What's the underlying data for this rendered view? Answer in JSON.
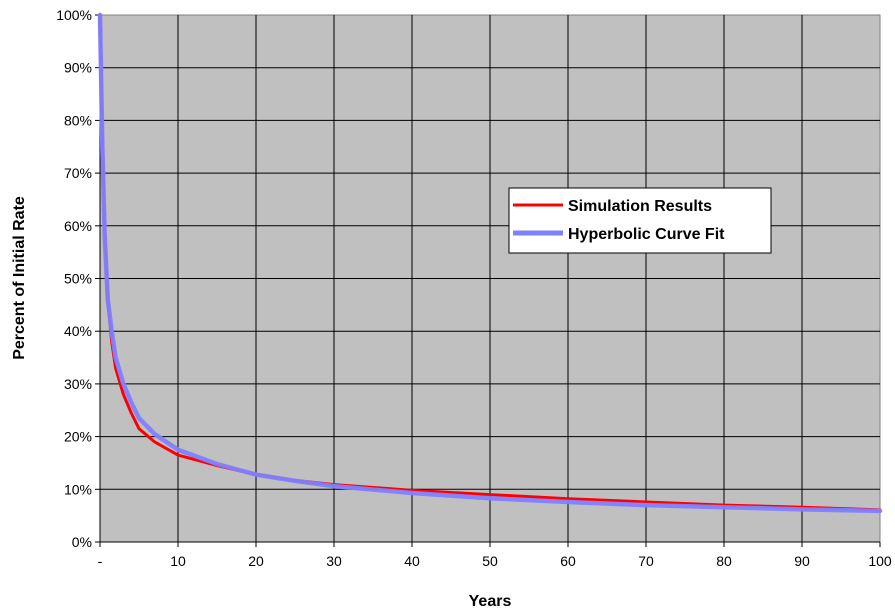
{
  "chart_data": {
    "type": "line",
    "title": "",
    "xlabel": "Years",
    "ylabel": "Percent of Initial Rate",
    "xlim": [
      0,
      100
    ],
    "ylim": [
      0,
      100
    ],
    "x_tick_labels": [
      "-",
      "10",
      "20",
      "30",
      "40",
      "50",
      "60",
      "70",
      "80",
      "90",
      "100"
    ],
    "y_tick_labels": [
      "0%",
      "10%",
      "20%",
      "30%",
      "40%",
      "50%",
      "60%",
      "70%",
      "80%",
      "90%",
      "100%"
    ],
    "grid": true,
    "plot_background": "#c0c0c0",
    "legend_position": "center-right",
    "series": [
      {
        "name": "Simulation Results",
        "color": "#ff0000",
        "x": [
          0,
          0.3,
          0.6,
          1,
          1.5,
          2,
          3,
          4,
          5,
          7,
          10,
          15,
          20,
          25,
          30,
          40,
          50,
          60,
          70,
          80,
          90,
          100
        ],
        "y": [
          100,
          78,
          60,
          46,
          38,
          33,
          28,
          24.5,
          21.5,
          19,
          16.5,
          14.5,
          12.8,
          11.7,
          10.9,
          9.8,
          9.0,
          8.2,
          7.6,
          7.0,
          6.6,
          6.1
        ]
      },
      {
        "name": "Hyperbolic Curve Fit",
        "color": "#8080ff",
        "x": [
          0,
          0.3,
          0.6,
          1,
          1.5,
          2,
          3,
          4,
          5,
          7,
          10,
          15,
          20,
          25,
          30,
          40,
          50,
          60,
          70,
          80,
          90,
          100
        ],
        "y": [
          100,
          75,
          58,
          46,
          40,
          35,
          30,
          26.5,
          23.5,
          20.5,
          17.5,
          14.8,
          12.8,
          11.6,
          10.6,
          9.3,
          8.3,
          7.6,
          7.0,
          6.6,
          6.2,
          5.9
        ]
      }
    ]
  }
}
